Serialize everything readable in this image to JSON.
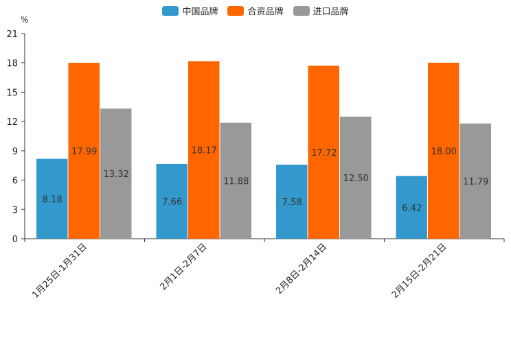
{
  "chart_data": {
    "type": "bar",
    "unit": "%",
    "categories": [
      "1月25日-1月31日",
      "2月1日-2月7日",
      "2月8日-2月14日",
      "2月15日-2月21日"
    ],
    "series": [
      {
        "name": "中国品牌",
        "color": "#3399cc",
        "values": [
          8.18,
          7.66,
          7.58,
          6.42
        ],
        "labels": [
          "8.18",
          "7.66",
          "7.58",
          "6.42"
        ]
      },
      {
        "name": "合资品牌",
        "color": "#ff6600",
        "values": [
          17.99,
          18.17,
          17.72,
          18.0
        ],
        "labels": [
          "17.99",
          "18.17",
          "17.72",
          "18.00"
        ]
      },
      {
        "name": "进口品牌",
        "color": "#999999",
        "values": [
          13.32,
          11.88,
          12.5,
          11.79
        ],
        "labels": [
          "13.32",
          "11.88",
          "12.50",
          "11.79"
        ]
      }
    ],
    "ylim": [
      0,
      21
    ],
    "yticks": [
      0,
      3,
      6,
      9,
      12,
      15,
      18,
      21
    ],
    "ytick_labels": [
      "0",
      "3",
      "6",
      "9",
      "12",
      "15",
      "18",
      "21"
    ],
    "legend_position": "top-center",
    "grid": false
  }
}
